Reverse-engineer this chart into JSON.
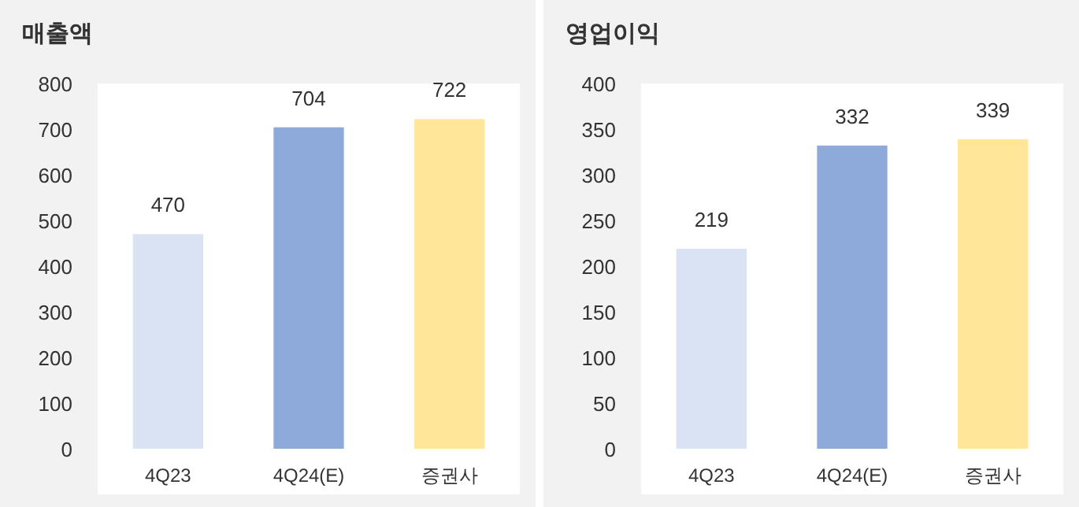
{
  "chart_data": [
    {
      "type": "bar",
      "title": "매출액",
      "categories": [
        "4Q23",
        "4Q24(E)",
        "증권사"
      ],
      "values": [
        470,
        704,
        722
      ],
      "colors": [
        "#dae3f3",
        "#8eaadb",
        "#ffe699"
      ],
      "ylim": [
        0,
        800
      ],
      "yticks": [
        0,
        100,
        200,
        300,
        400,
        500,
        600,
        700,
        800
      ],
      "data_labels": true
    },
    {
      "type": "bar",
      "title": "영업이익",
      "categories": [
        "4Q23",
        "4Q24(E)",
        "증권사"
      ],
      "values": [
        219,
        332,
        339
      ],
      "colors": [
        "#dae3f3",
        "#8eaadb",
        "#ffe699"
      ],
      "ylim": [
        0,
        400
      ],
      "yticks": [
        0,
        50,
        100,
        150,
        200,
        250,
        300,
        350,
        400
      ],
      "data_labels": true
    }
  ]
}
